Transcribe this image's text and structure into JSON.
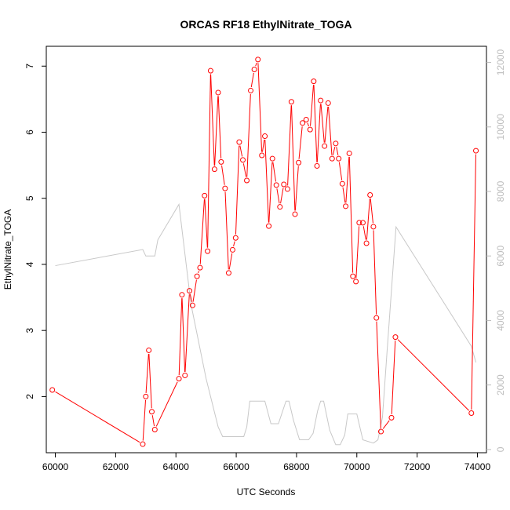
{
  "chart_data": {
    "type": "line",
    "title": "ORCAS RF18 EthylNitrate_TOGA",
    "xlabel": "UTC Seconds",
    "ylabel": "EthylNitrate_TOGA",
    "xlim": [
      59700,
      74300
    ],
    "ylim": [
      1.15,
      7.3
    ],
    "y2lim": [
      -100,
      12500
    ],
    "grid": false,
    "x_ticks": [
      60000,
      62000,
      64000,
      66000,
      68000,
      70000,
      72000,
      74000
    ],
    "x_tick_labels": [
      "60000",
      "62000",
      "64000",
      "66000",
      "68000",
      "70000",
      "72000",
      "74000"
    ],
    "y_ticks": [
      2,
      3,
      4,
      5,
      6,
      7
    ],
    "y_tick_labels": [
      "2",
      "3",
      "4",
      "5",
      "6",
      "7"
    ],
    "y2_ticks": [
      0,
      2000,
      4000,
      6000,
      8000,
      10000,
      12000
    ],
    "y2_tick_labels": [
      "0",
      "2000",
      "4000",
      "6000",
      "8000",
      "10000",
      "12000"
    ],
    "colors": {
      "main": "#ff0000",
      "secondary": "#c8c8c8"
    },
    "series": [
      {
        "axis": "left",
        "style": "line+points",
        "color": "#ff0000",
        "x": [
          59900,
          62900,
          63000,
          63100,
          63200,
          63300,
          64100,
          64200,
          64300,
          64450,
          64550,
          64700,
          64800,
          64950,
          65050,
          65150,
          65280,
          65400,
          65500,
          65630,
          65750,
          65880,
          65980,
          66100,
          66220,
          66350,
          66480,
          66600,
          66720,
          66850,
          66950,
          67080,
          67200,
          67330,
          67450,
          67580,
          67700,
          67830,
          67950,
          68070,
          68200,
          68320,
          68450,
          68570,
          68680,
          68800,
          68930,
          69050,
          69180,
          69300,
          69400,
          69520,
          69630,
          69750,
          69870,
          69970,
          70080,
          70200,
          70320,
          70440,
          70550,
          70650,
          70800,
          71150,
          71280,
          73800,
          73950
        ],
        "y": [
          2.1,
          1.28,
          2.0,
          2.7,
          1.77,
          1.5,
          2.27,
          3.54,
          2.32,
          3.6,
          3.38,
          3.82,
          3.95,
          5.04,
          4.2,
          6.93,
          5.44,
          6.6,
          5.55,
          5.15,
          3.87,
          4.22,
          4.4,
          5.85,
          5.58,
          5.27,
          6.63,
          6.95,
          7.1,
          5.65,
          5.94,
          4.58,
          5.6,
          5.2,
          4.87,
          5.21,
          5.14,
          6.46,
          4.76,
          5.54,
          6.14,
          6.19,
          6.04,
          6.77,
          5.49,
          6.48,
          5.79,
          6.44,
          5.6,
          5.83,
          5.6,
          5.22,
          4.88,
          5.68,
          3.82,
          3.74,
          4.63,
          4.63,
          4.32,
          5.05,
          4.57,
          3.19,
          1.47,
          1.68,
          2.9,
          1.75,
          5.72
        ]
      },
      {
        "axis": "right",
        "style": "line",
        "color": "#c8c8c8",
        "x": [
          60000,
          62900,
          63000,
          63300,
          63400,
          64100,
          64500,
          65000,
          65400,
          65550,
          65700,
          66000,
          66250,
          66350,
          66450,
          66800,
          66950,
          67150,
          67400,
          67650,
          67750,
          67900,
          68100,
          68200,
          68400,
          68550,
          68700,
          68800,
          68900,
          69100,
          69300,
          69450,
          69600,
          69700,
          69800,
          70000,
          70200,
          70550,
          70700,
          70850,
          71000,
          71300,
          73800,
          73950
        ],
        "y": [
          5700,
          6200,
          6000,
          6000,
          6500,
          7600,
          4500,
          2200,
          700,
          400,
          400,
          400,
          400,
          700,
          1500,
          1500,
          1500,
          800,
          800,
          1500,
          1500,
          900,
          300,
          300,
          300,
          500,
          1200,
          1500,
          1500,
          600,
          150,
          150,
          450,
          1100,
          1100,
          1100,
          300,
          200,
          300,
          1000,
          3000,
          6900,
          3200,
          2700
        ]
      }
    ]
  }
}
